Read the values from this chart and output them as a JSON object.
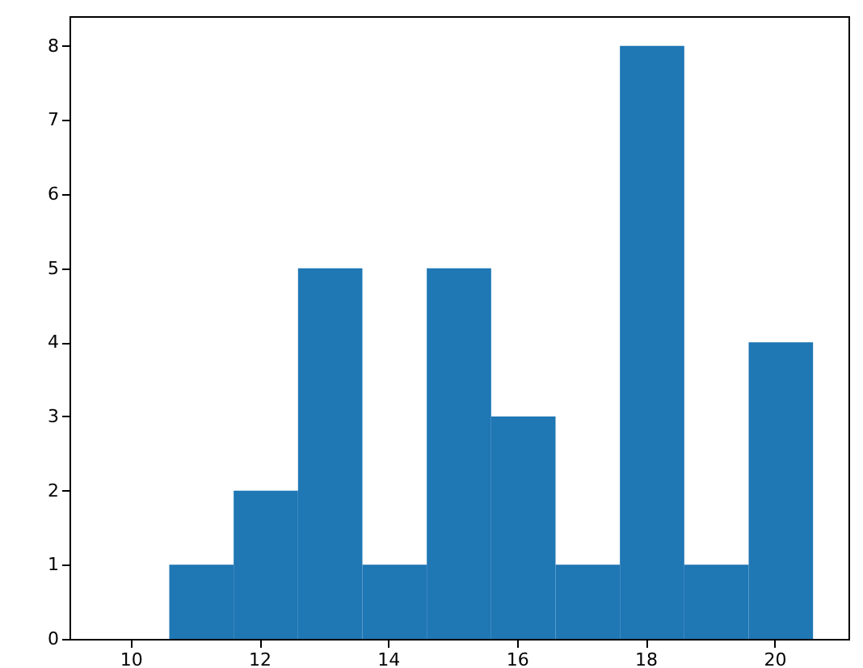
{
  "chart_data": {
    "type": "histogram",
    "bins": [
      9.6,
      10.6,
      11.6,
      12.6,
      13.6,
      14.6,
      15.6,
      16.6,
      17.6,
      18.6,
      19.6,
      20.6
    ],
    "values": [
      0,
      1,
      2,
      5,
      1,
      5,
      3,
      1,
      8,
      1,
      4
    ],
    "color": "#1f77b4",
    "xlim": [
      9.05,
      21.15
    ],
    "xticks": [
      10,
      12,
      14,
      16,
      18,
      20
    ],
    "ylim": [
      0,
      8.4
    ],
    "yticks": [
      0,
      1,
      2,
      3,
      4,
      5,
      6,
      7,
      8
    ],
    "grid": false
  }
}
